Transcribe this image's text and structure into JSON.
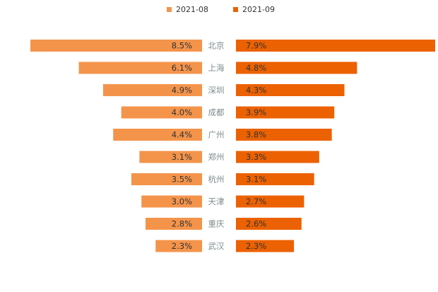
{
  "chart_data": {
    "type": "bar",
    "orientation": "horizontal-butterfly",
    "title": "",
    "categories": [
      "北京",
      "上海",
      "深圳",
      "成都",
      "广州",
      "郑州",
      "杭州",
      "天津",
      "重庆",
      "武汉"
    ],
    "series": [
      {
        "name": "2021-08",
        "values": [
          8.5,
          6.1,
          4.9,
          4.0,
          4.4,
          3.1,
          3.5,
          3.0,
          2.8,
          2.3
        ],
        "labels": [
          "8.5%",
          "6.1%",
          "4.9%",
          "4.0%",
          "4.4%",
          "3.1%",
          "3.5%",
          "3.0%",
          "2.8%",
          "2.3%"
        ],
        "color": "#f4944b",
        "side": "left"
      },
      {
        "name": "2021-09",
        "values": [
          7.9,
          4.8,
          4.3,
          3.9,
          3.8,
          3.3,
          3.1,
          2.7,
          2.6,
          2.3
        ],
        "labels": [
          "7.9%",
          "4.8%",
          "4.3%",
          "3.9%",
          "3.8%",
          "3.3%",
          "3.1%",
          "2.7%",
          "2.6%",
          "2.3%"
        ],
        "color": "#ec6101",
        "side": "right"
      }
    ],
    "value_suffix": "%",
    "legend_position": "top-center"
  }
}
